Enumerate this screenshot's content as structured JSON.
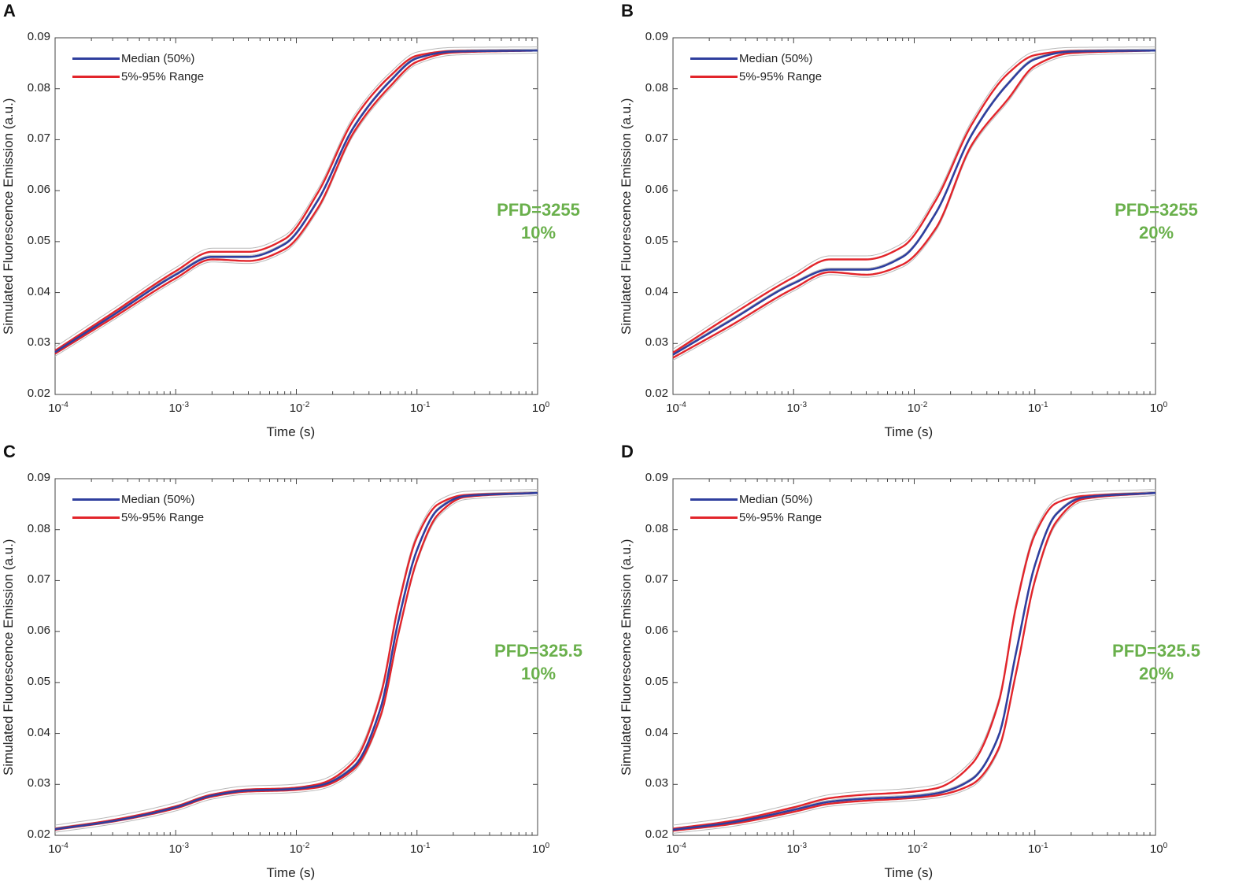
{
  "colors": {
    "median": "#2f3f9e",
    "range": "#e2252b",
    "runs": "#b9b9b9",
    "annotation": "#6ab04c",
    "axis": "#444444"
  },
  "chart_data": [
    {
      "panel": "A",
      "type": "line",
      "xlabel": "Time (s)",
      "ylabel": "Simulated Fluorescence Emission (a.u.)",
      "xscale": "log",
      "xlim": [
        0.0001,
        1
      ],
      "ylim": [
        0.02,
        0.09
      ],
      "yticks": [
        "0.02",
        "0.03",
        "0.04",
        "0.05",
        "0.06",
        "0.07",
        "0.08",
        "0.09"
      ],
      "xticks": [
        {
          "base": "10",
          "exp": "-4"
        },
        {
          "base": "10",
          "exp": "-3"
        },
        {
          "base": "10",
          "exp": "-2"
        },
        {
          "base": "10",
          "exp": "-1"
        },
        {
          "base": "10",
          "exp": "0"
        }
      ],
      "legend": [
        "Median (50%)",
        "5%-95% Range"
      ],
      "annotation": [
        "PFD=3255",
        "10%"
      ],
      "series": [
        {
          "name": "Median (50%)",
          "x": [
            0.0001,
            0.0003,
            0.001,
            0.002,
            0.004,
            0.008,
            0.015,
            0.03,
            0.06,
            0.1,
            0.2,
            1
          ],
          "y": [
            0.0283,
            0.0355,
            0.0435,
            0.047,
            0.047,
            0.0495,
            0.058,
            0.0725,
            0.0815,
            0.086,
            0.0873,
            0.0875
          ]
        },
        {
          "name": "5% bound",
          "x": [
            0.0001,
            0.0003,
            0.001,
            0.002,
            0.004,
            0.008,
            0.015,
            0.03,
            0.06,
            0.1,
            0.2,
            1
          ],
          "y": [
            0.028,
            0.035,
            0.0428,
            0.0465,
            0.0462,
            0.0485,
            0.0565,
            0.0715,
            0.0805,
            0.0853,
            0.0871,
            0.0875
          ]
        },
        {
          "name": "95% bound",
          "x": [
            0.0001,
            0.0003,
            0.001,
            0.002,
            0.004,
            0.008,
            0.015,
            0.03,
            0.06,
            0.1,
            0.2,
            1
          ],
          "y": [
            0.0286,
            0.036,
            0.0442,
            0.048,
            0.048,
            0.0505,
            0.0595,
            0.074,
            0.0825,
            0.0865,
            0.0874,
            0.0875
          ]
        }
      ]
    },
    {
      "panel": "B",
      "type": "line",
      "xlabel": "Time (s)",
      "ylabel": "Simulated Fluorescence Emission (a.u.)",
      "xscale": "log",
      "xlim": [
        0.0001,
        1
      ],
      "ylim": [
        0.02,
        0.09
      ],
      "yticks": [
        "0.02",
        "0.03",
        "0.04",
        "0.05",
        "0.06",
        "0.07",
        "0.08",
        "0.09"
      ],
      "xticks": [
        {
          "base": "10",
          "exp": "-4"
        },
        {
          "base": "10",
          "exp": "-3"
        },
        {
          "base": "10",
          "exp": "-2"
        },
        {
          "base": "10",
          "exp": "-1"
        },
        {
          "base": "10",
          "exp": "0"
        }
      ],
      "legend": [
        "Median (50%)",
        "5%-95% Range"
      ],
      "annotation": [
        "PFD=3255",
        "20%"
      ],
      "series": [
        {
          "name": "Median (50%)",
          "x": [
            0.0001,
            0.0003,
            0.001,
            0.002,
            0.004,
            0.008,
            0.015,
            0.03,
            0.06,
            0.1,
            0.2,
            1
          ],
          "y": [
            0.0278,
            0.0345,
            0.0418,
            0.0445,
            0.0445,
            0.047,
            0.0555,
            0.071,
            0.081,
            0.0858,
            0.0873,
            0.0875
          ]
        },
        {
          "name": "5% bound",
          "x": [
            0.0001,
            0.0003,
            0.001,
            0.002,
            0.004,
            0.008,
            0.015,
            0.03,
            0.06,
            0.1,
            0.2,
            1
          ],
          "y": [
            0.0272,
            0.0335,
            0.0408,
            0.044,
            0.0435,
            0.0455,
            0.0525,
            0.069,
            0.078,
            0.0845,
            0.087,
            0.0875
          ]
        },
        {
          "name": "95% bound",
          "x": [
            0.0001,
            0.0003,
            0.001,
            0.002,
            0.004,
            0.008,
            0.015,
            0.03,
            0.06,
            0.1,
            0.2,
            1
          ],
          "y": [
            0.0282,
            0.0355,
            0.043,
            0.0465,
            0.0465,
            0.049,
            0.058,
            0.073,
            0.083,
            0.0866,
            0.0874,
            0.0875
          ]
        }
      ]
    },
    {
      "panel": "C",
      "type": "line",
      "xlabel": "Time (s)",
      "ylabel": "Simulated Fluorescence Emission (a.u.)",
      "xscale": "log",
      "xlim": [
        0.0001,
        1
      ],
      "ylim": [
        0.02,
        0.09
      ],
      "yticks": [
        "0.02",
        "0.03",
        "0.04",
        "0.05",
        "0.06",
        "0.07",
        "0.08",
        "0.09"
      ],
      "xticks": [
        {
          "base": "10",
          "exp": "-4"
        },
        {
          "base": "10",
          "exp": "-3"
        },
        {
          "base": "10",
          "exp": "-2"
        },
        {
          "base": "10",
          "exp": "-1"
        },
        {
          "base": "10",
          "exp": "0"
        }
      ],
      "legend": [
        "Median (50%)",
        "5%-95% Range"
      ],
      "annotation": [
        "PFD=325.5",
        "10%"
      ],
      "series": [
        {
          "name": "Median (50%)",
          "x": [
            0.0001,
            0.0003,
            0.001,
            0.002,
            0.004,
            0.008,
            0.015,
            0.03,
            0.05,
            0.07,
            0.1,
            0.15,
            0.25,
            1
          ],
          "y": [
            0.0212,
            0.0228,
            0.0255,
            0.0278,
            0.0288,
            0.029,
            0.0297,
            0.0335,
            0.045,
            0.062,
            0.076,
            0.084,
            0.0866,
            0.0872
          ]
        },
        {
          "name": "5% bound",
          "x": [
            0.0001,
            0.0003,
            0.001,
            0.002,
            0.004,
            0.008,
            0.015,
            0.03,
            0.05,
            0.07,
            0.1,
            0.15,
            0.25,
            1
          ],
          "y": [
            0.0211,
            0.0227,
            0.0253,
            0.0276,
            0.0286,
            0.0288,
            0.0294,
            0.033,
            0.0435,
            0.0595,
            0.074,
            0.083,
            0.0864,
            0.0872
          ]
        },
        {
          "name": "95% bound",
          "x": [
            0.0001,
            0.0003,
            0.001,
            0.002,
            0.004,
            0.008,
            0.015,
            0.03,
            0.05,
            0.07,
            0.1,
            0.15,
            0.25,
            1
          ],
          "y": [
            0.0213,
            0.023,
            0.0257,
            0.028,
            0.029,
            0.0292,
            0.03,
            0.0345,
            0.0475,
            0.065,
            0.0785,
            0.085,
            0.0868,
            0.0872
          ]
        }
      ]
    },
    {
      "panel": "D",
      "type": "line",
      "xlabel": "Time (s)",
      "ylabel": "Simulated Fluorescence Emission (a.u.)",
      "xscale": "log",
      "xlim": [
        0.0001,
        1
      ],
      "ylim": [
        0.02,
        0.09
      ],
      "yticks": [
        "0.02",
        "0.03",
        "0.04",
        "0.05",
        "0.06",
        "0.07",
        "0.08",
        "0.09"
      ],
      "xticks": [
        {
          "base": "10",
          "exp": "-4"
        },
        {
          "base": "10",
          "exp": "-3"
        },
        {
          "base": "10",
          "exp": "-2"
        },
        {
          "base": "10",
          "exp": "-1"
        },
        {
          "base": "10",
          "exp": "0"
        }
      ],
      "legend": [
        "Median (50%)",
        "5%-95% Range"
      ],
      "annotation": [
        "PFD=325.5",
        "20%"
      ],
      "series": [
        {
          "name": "Median (50%)",
          "x": [
            0.0001,
            0.0003,
            0.001,
            0.002,
            0.004,
            0.008,
            0.015,
            0.03,
            0.05,
            0.07,
            0.1,
            0.15,
            0.25,
            1
          ],
          "y": [
            0.0211,
            0.0225,
            0.025,
            0.0266,
            0.0272,
            0.0275,
            0.0282,
            0.031,
            0.0395,
            0.056,
            0.073,
            0.083,
            0.0863,
            0.0872
          ]
        },
        {
          "name": "5% bound",
          "x": [
            0.0001,
            0.0003,
            0.001,
            0.002,
            0.004,
            0.008,
            0.015,
            0.03,
            0.05,
            0.07,
            0.1,
            0.15,
            0.25,
            1
          ],
          "y": [
            0.0209,
            0.0222,
            0.0246,
            0.0262,
            0.0268,
            0.0272,
            0.0278,
            0.03,
            0.037,
            0.052,
            0.07,
            0.0815,
            0.086,
            0.0872
          ]
        },
        {
          "name": "95% bound",
          "x": [
            0.0001,
            0.0003,
            0.001,
            0.002,
            0.004,
            0.008,
            0.015,
            0.03,
            0.05,
            0.07,
            0.1,
            0.15,
            0.25,
            1
          ],
          "y": [
            0.0213,
            0.0228,
            0.0255,
            0.0273,
            0.028,
            0.0284,
            0.0292,
            0.034,
            0.046,
            0.065,
            0.079,
            0.0852,
            0.0866,
            0.0872
          ]
        }
      ]
    }
  ]
}
